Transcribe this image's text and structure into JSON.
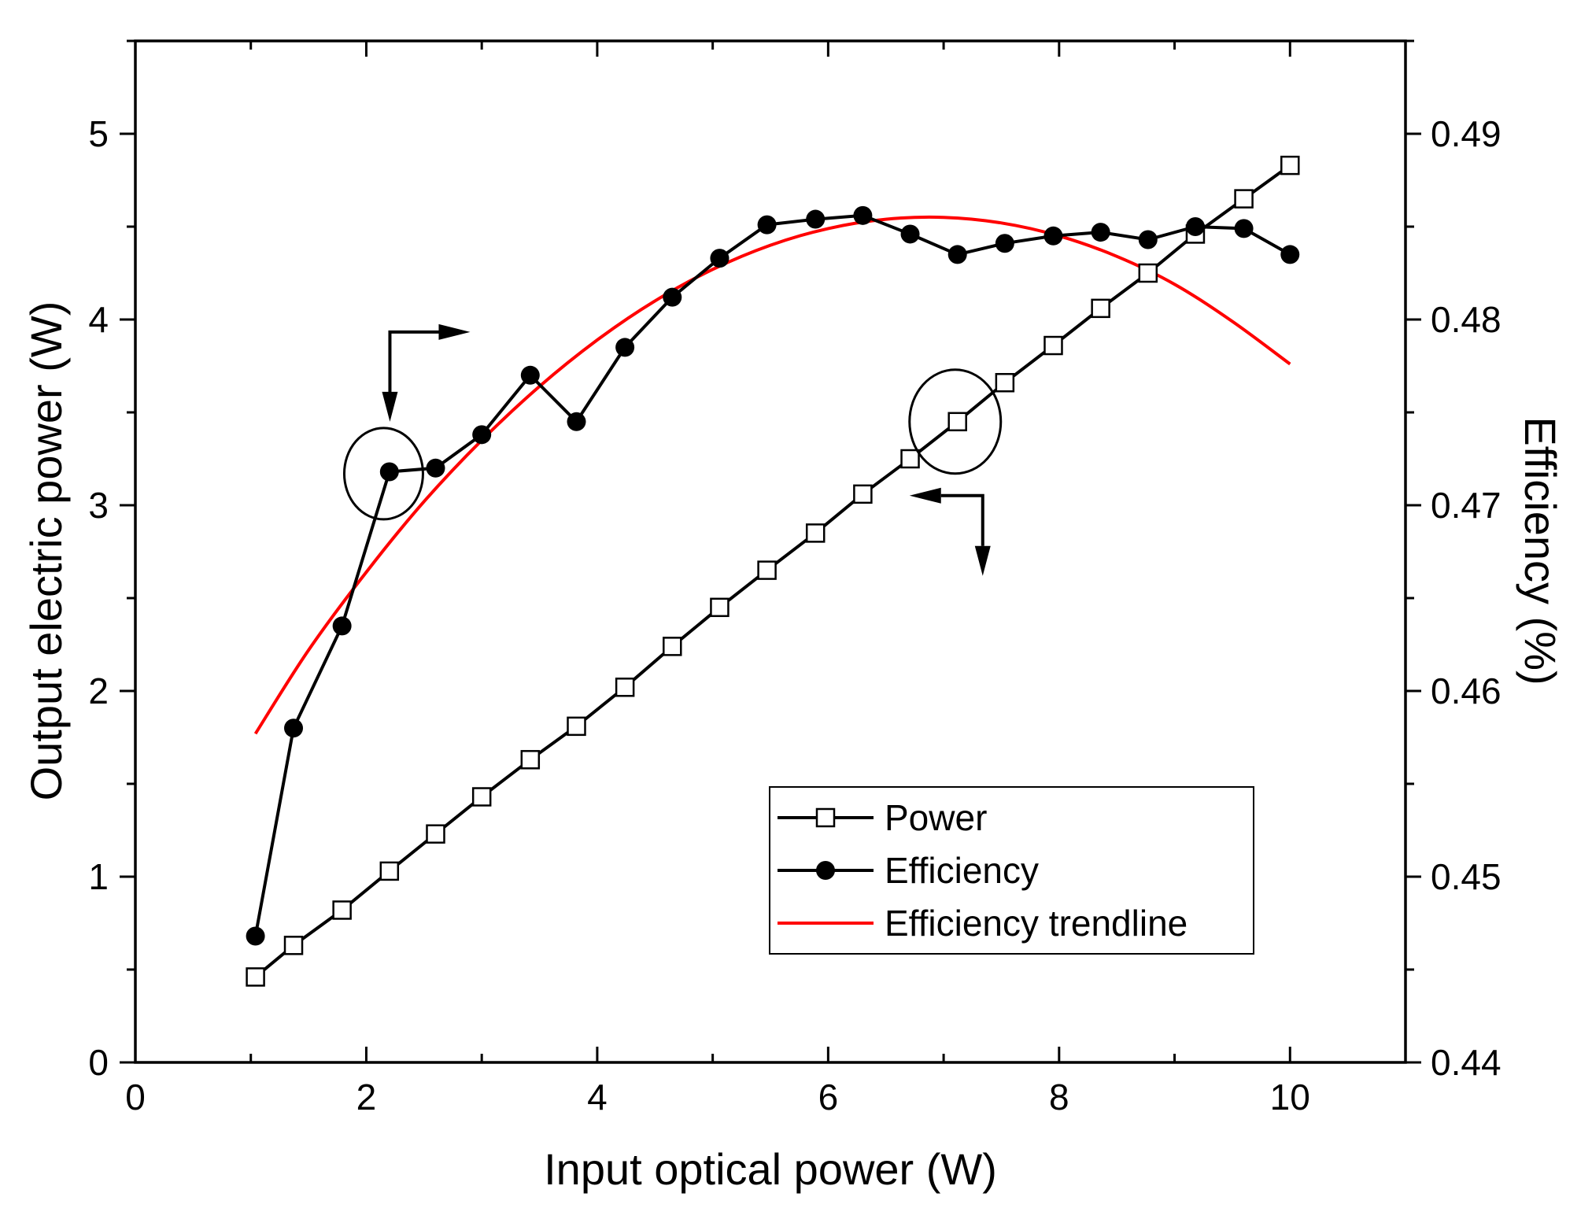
{
  "chart_data": {
    "type": "line",
    "title": "",
    "xlabel": "Input optical power (W)",
    "ylabel": "Output electric power (W)",
    "y2label": "Efficiency (%)",
    "xlim": [
      0,
      11
    ],
    "ylim": [
      0,
      5.5
    ],
    "y2lim": [
      0.44,
      0.495
    ],
    "xticks": [
      0,
      2,
      4,
      6,
      8,
      10
    ],
    "yticks": [
      0,
      1,
      2,
      3,
      4,
      5
    ],
    "y2ticks": [
      0.44,
      0.45,
      0.46,
      0.47,
      0.48,
      0.49
    ],
    "x": [
      1.04,
      1.37,
      1.79,
      2.2,
      2.6,
      3.0,
      3.42,
      3.82,
      4.24,
      4.65,
      5.06,
      5.47,
      5.89,
      6.3,
      6.71,
      7.12,
      7.53,
      7.95,
      8.36,
      8.77,
      9.18,
      9.6,
      10.0
    ],
    "series": [
      {
        "name": "Power",
        "axis": "left",
        "marker": "open-square",
        "color": "#000000",
        "values": [
          0.46,
          0.63,
          0.82,
          1.03,
          1.23,
          1.43,
          1.63,
          1.81,
          2.02,
          2.24,
          2.45,
          2.65,
          2.85,
          3.06,
          3.25,
          3.45,
          3.66,
          3.86,
          4.06,
          4.25,
          4.46,
          4.65,
          4.83
        ]
      },
      {
        "name": "Efficiency",
        "axis": "right",
        "marker": "filled-circle",
        "color": "#000000",
        "values": [
          0.4468,
          0.458,
          0.4635,
          0.4718,
          0.472,
          0.4738,
          0.477,
          0.4745,
          0.4785,
          0.4812,
          0.4833,
          0.4851,
          0.4854,
          0.4856,
          0.4846,
          0.4835,
          0.4841,
          0.4845,
          0.4847,
          0.4843,
          0.485,
          0.4849,
          0.4835
        ]
      },
      {
        "name": "Efficiency trendline",
        "axis": "right",
        "style": "smooth-curve",
        "color": "#ff0000",
        "x": [
          1.04,
          1.5,
          2.0,
          2.5,
          3.0,
          3.5,
          4.0,
          4.5,
          5.0,
          5.5,
          6.0,
          6.5,
          7.0,
          7.5,
          8.0,
          8.5,
          9.0,
          9.5,
          10.0
        ],
        "values": [
          0.4577,
          0.4622,
          0.4664,
          0.4702,
          0.4735,
          0.4764,
          0.4789,
          0.481,
          0.4827,
          0.484,
          0.4849,
          0.4854,
          0.4855,
          0.4852,
          0.4845,
          0.4834,
          0.4819,
          0.4799,
          0.4776
        ]
      }
    ],
    "annotations": [
      {
        "type": "circle",
        "target": "Efficiency",
        "at_x": 2.15,
        "at_y": 3.17,
        "arrow": "right-axis"
      },
      {
        "type": "circle",
        "target": "Power",
        "at_x": 7.1,
        "at_y": 3.45,
        "arrow": "left-axis"
      }
    ],
    "legend": {
      "placement": "bottom-right",
      "entries": [
        "Power",
        "Efficiency",
        "Efficiency trendline"
      ]
    }
  }
}
